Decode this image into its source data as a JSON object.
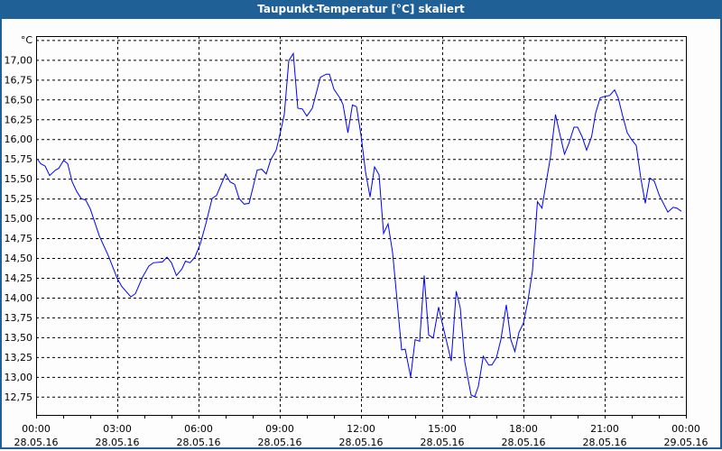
{
  "window": {
    "title": "Taupunkt-Temperatur [°C] skaliert"
  },
  "chart_data": {
    "type": "line",
    "title": "Taupunkt-Temperatur [°C] skaliert",
    "ylabel": "°C",
    "ylim": [
      12.52,
      17.3
    ],
    "xlim": [
      "28.05.16 00:00",
      "29.05.16 00:00"
    ],
    "grid": true,
    "line_color": "#0000ff",
    "yticks": [
      "12,75",
      "13,00",
      "13,25",
      "13,50",
      "13,75",
      "14,00",
      "14,25",
      "14,50",
      "14,75",
      "15,00",
      "15,25",
      "15,50",
      "15,75",
      "16,00",
      "16,25",
      "16,50",
      "16,75",
      "17,00"
    ],
    "ytick_values": [
      12.75,
      13.0,
      13.25,
      13.5,
      13.75,
      14.0,
      14.25,
      14.5,
      14.75,
      15.0,
      15.25,
      15.5,
      15.75,
      16.0,
      16.25,
      16.5,
      16.75,
      17.0
    ],
    "xticks": [
      {
        "time": "00:00",
        "date": "28.05.16"
      },
      {
        "time": "03:00",
        "date": "28.05.16"
      },
      {
        "time": "06:00",
        "date": "28.05.16"
      },
      {
        "time": "09:00",
        "date": "28.05.16"
      },
      {
        "time": "12:00",
        "date": "28.05.16"
      },
      {
        "time": "15:00",
        "date": "28.05.16"
      },
      {
        "time": "18:00",
        "date": "28.05.16"
      },
      {
        "time": "21:00",
        "date": "28.05.16"
      },
      {
        "time": "00:00",
        "date": "29.05.16"
      }
    ],
    "series": [
      {
        "points": [
          [
            "00:04",
            15.74
          ],
          [
            "00:10",
            15.69
          ],
          [
            "00:20",
            15.66
          ],
          [
            "00:30",
            15.54
          ],
          [
            "00:43",
            15.61
          ],
          [
            "00:50",
            15.63
          ],
          [
            "01:01",
            15.73
          ],
          [
            "01:10",
            15.69
          ],
          [
            "01:20",
            15.46
          ],
          [
            "01:30",
            15.34
          ],
          [
            "01:40",
            15.25
          ],
          [
            "01:50",
            15.23
          ],
          [
            "02:00",
            15.12
          ],
          [
            "02:20",
            14.78
          ],
          [
            "02:40",
            14.53
          ],
          [
            "03:00",
            14.24
          ],
          [
            "03:10",
            14.14
          ],
          [
            "03:30",
            14.01
          ],
          [
            "03:40",
            14.05
          ],
          [
            "03:56",
            14.26
          ],
          [
            "04:10",
            14.4
          ],
          [
            "04:20",
            14.44
          ],
          [
            "04:40",
            14.45
          ],
          [
            "04:50",
            14.51
          ],
          [
            "05:00",
            14.44
          ],
          [
            "05:11",
            14.28
          ],
          [
            "05:23",
            14.36
          ],
          [
            "05:31",
            14.46
          ],
          [
            "05:41",
            14.44
          ],
          [
            "05:52",
            14.51
          ],
          [
            "06:04",
            14.68
          ],
          [
            "06:17",
            14.95
          ],
          [
            "06:30",
            15.25
          ],
          [
            "06:40",
            15.29
          ],
          [
            "07:00",
            15.56
          ],
          [
            "07:10",
            15.46
          ],
          [
            "07:20",
            15.43
          ],
          [
            "07:30",
            15.25
          ],
          [
            "07:41",
            15.18
          ],
          [
            "07:52",
            15.19
          ],
          [
            "08:10",
            15.61
          ],
          [
            "08:20",
            15.62
          ],
          [
            "08:30",
            15.56
          ],
          [
            "08:40",
            15.74
          ],
          [
            "08:52",
            15.86
          ],
          [
            "09:00",
            16.05
          ],
          [
            "09:10",
            16.31
          ],
          [
            "09:20",
            16.99
          ],
          [
            "09:30",
            17.08
          ],
          [
            "09:40",
            16.39
          ],
          [
            "09:50",
            16.38
          ],
          [
            "10:00",
            16.29
          ],
          [
            "10:12",
            16.39
          ],
          [
            "10:30",
            16.78
          ],
          [
            "10:43",
            16.82
          ],
          [
            "10:50",
            16.82
          ],
          [
            "11:00",
            16.63
          ],
          [
            "11:13",
            16.52
          ],
          [
            "11:20",
            16.44
          ],
          [
            "11:31",
            16.08
          ],
          [
            "11:41",
            16.43
          ],
          [
            "11:50",
            16.41
          ],
          [
            "12:00",
            16.05
          ],
          [
            "12:10",
            15.59
          ],
          [
            "12:20",
            15.27
          ],
          [
            "12:30",
            15.65
          ],
          [
            "12:40",
            15.55
          ],
          [
            "12:50",
            14.81
          ],
          [
            "13:00",
            14.93
          ],
          [
            "13:10",
            14.57
          ],
          [
            "13:20",
            13.96
          ],
          [
            "13:30",
            13.34
          ],
          [
            "13:38",
            13.35
          ],
          [
            "13:50",
            13.0
          ],
          [
            "14:00",
            13.47
          ],
          [
            "14:10",
            13.45
          ],
          [
            "14:20",
            14.28
          ],
          [
            "14:30",
            13.53
          ],
          [
            "14:40",
            13.49
          ],
          [
            "14:52",
            13.88
          ],
          [
            "15:00",
            13.68
          ],
          [
            "15:20",
            13.2
          ],
          [
            "15:31",
            14.08
          ],
          [
            "15:40",
            13.87
          ],
          [
            "15:50",
            13.19
          ],
          [
            "16:04",
            12.77
          ],
          [
            "16:12",
            12.75
          ],
          [
            "16:20",
            12.88
          ],
          [
            "16:31",
            13.26
          ],
          [
            "16:43",
            13.15
          ],
          [
            "16:50",
            13.15
          ],
          [
            "17:00",
            13.24
          ],
          [
            "17:10",
            13.47
          ],
          [
            "17:22",
            13.91
          ],
          [
            "17:32",
            13.47
          ],
          [
            "17:41",
            13.32
          ],
          [
            "17:50",
            13.56
          ],
          [
            "18:00",
            13.68
          ],
          [
            "18:10",
            13.96
          ],
          [
            "18:20",
            14.34
          ],
          [
            "18:31",
            15.21
          ],
          [
            "18:41",
            15.13
          ],
          [
            "18:50",
            15.44
          ],
          [
            "19:00",
            15.78
          ],
          [
            "19:11",
            16.31
          ],
          [
            "19:22",
            16.03
          ],
          [
            "19:31",
            15.81
          ],
          [
            "19:41",
            15.95
          ],
          [
            "19:52",
            16.15
          ],
          [
            "20:00",
            16.15
          ],
          [
            "20:10",
            16.03
          ],
          [
            "20:20",
            15.86
          ],
          [
            "20:31",
            16.03
          ],
          [
            "20:40",
            16.33
          ],
          [
            "20:50",
            16.52
          ],
          [
            "21:00",
            16.54
          ],
          [
            "21:11",
            16.55
          ],
          [
            "21:22",
            16.62
          ],
          [
            "21:30",
            16.52
          ],
          [
            "21:40",
            16.29
          ],
          [
            "21:50",
            16.08
          ],
          [
            "22:00",
            15.99
          ],
          [
            "22:10",
            15.92
          ],
          [
            "22:20",
            15.51
          ],
          [
            "22:30",
            15.19
          ],
          [
            "22:40",
            15.51
          ],
          [
            "22:50",
            15.47
          ],
          [
            "23:01",
            15.29
          ],
          [
            "23:20",
            15.08
          ],
          [
            "23:32",
            15.14
          ],
          [
            "23:40",
            15.13
          ],
          [
            "23:50",
            15.09
          ]
        ]
      }
    ]
  }
}
